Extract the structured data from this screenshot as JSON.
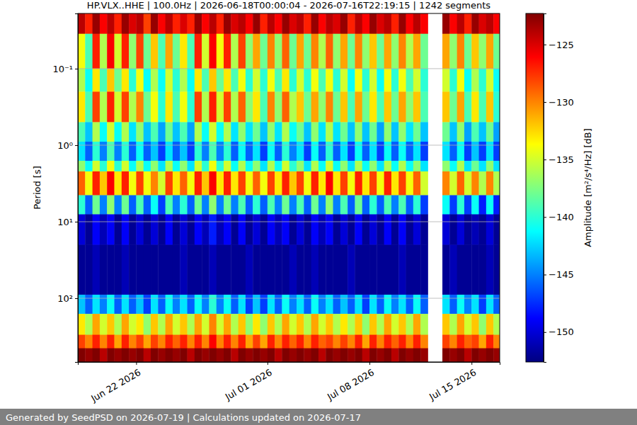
{
  "chart_data": {
    "type": "heatmap",
    "title": "HP.VLX..HHE | 100.0Hz | 2026-06-18T00:00:04 - 2026-07-16T22:19:15 | 1242 segments",
    "footer": "Generated by SeedPSD on 2026-07-19 | Calculations updated on 2026-07-17",
    "y_label": "Period [s]",
    "log": "y",
    "grid": "y",
    "xlim": [
      "2026-06-18T00:00:04",
      "2026-07-16T22:19:15"
    ],
    "ylim": [
      0.019,
      680
    ],
    "xticks": [
      {
        "value": "2026-06-22",
        "label": "Jun 22 2026"
      },
      {
        "value": "2026-07-01",
        "label": "Jul 01 2026"
      },
      {
        "value": "2026-07-08",
        "label": "Jul 08 2026"
      },
      {
        "value": "2026-07-15",
        "label": "Jul 15 2026"
      }
    ],
    "yticks": [
      {
        "value": 0.1,
        "label": "10⁻¹"
      },
      {
        "value": 1,
        "label": "10⁰"
      },
      {
        "value": 10,
        "label": "10¹"
      },
      {
        "value": 100,
        "label": "10²"
      }
    ],
    "x_edges": [
      "2026-06-18T00:00:04",
      "2026-06-18T12:00:00",
      "2026-06-19T00:00:00",
      "2026-06-19T12:00:00",
      "2026-06-20T00:00:00",
      "2026-06-20T12:00:00",
      "2026-06-21T00:00:00",
      "2026-06-21T12:00:00",
      "2026-06-22T00:00:00",
      "2026-06-22T12:00:00",
      "2026-06-23T00:00:00",
      "2026-06-23T12:00:00",
      "2026-06-24T00:00:00",
      "2026-06-24T12:00:00",
      "2026-06-25T00:00:00",
      "2026-06-25T12:00:00",
      "2026-06-26T00:00:00",
      "2026-06-26T12:00:00",
      "2026-06-27T00:00:00",
      "2026-06-27T12:00:00",
      "2026-06-28T00:00:00",
      "2026-06-28T12:00:00",
      "2026-06-29T00:00:00",
      "2026-06-29T12:00:00",
      "2026-06-30T00:00:00",
      "2026-06-30T12:00:00",
      "2026-07-01T00:00:00",
      "2026-07-01T12:00:00",
      "2026-07-02T00:00:00",
      "2026-07-02T12:00:00",
      "2026-07-03T00:00:00",
      "2026-07-03T12:00:00",
      "2026-07-04T00:00:00",
      "2026-07-04T12:00:00",
      "2026-07-05T00:00:00",
      "2026-07-05T12:00:00",
      "2026-07-06T00:00:00",
      "2026-07-06T12:00:00",
      "2026-07-07T00:00:00",
      "2026-07-07T12:00:00",
      "2026-07-08T00:00:00",
      "2026-07-08T12:00:00",
      "2026-07-09T00:00:00",
      "2026-07-09T12:00:00",
      "2026-07-10T00:00:00",
      "2026-07-10T12:00:00",
      "2026-07-11T00:00:00",
      "2026-07-11T12:00:00",
      "2026-07-12T00:00:00",
      "2026-07-12T12:00:00",
      "2026-07-13T00:00:00",
      "2026-07-13T12:00:00",
      "2026-07-14T00:00:00",
      "2026-07-14T12:00:00",
      "2026-07-15T00:00:00",
      "2026-07-15T12:00:00",
      "2026-07-16T00:00:00",
      "2026-07-16T12:00:00",
      "2026-07-16T22:19:15"
    ],
    "y_edges": [
      0.019,
      0.035,
      0.1,
      0.2,
      0.5,
      0.9,
      1.6,
      2.2,
      4.5,
      8,
      20,
      90,
      160,
      300,
      450,
      680
    ],
    "z": [
      [
        -124,
        -127,
        -123,
        -126,
        -124,
        -127,
        -123,
        -125,
        -124,
        -128,
        -123,
        -126,
        -124,
        -127,
        -125,
        -127,
        -123,
        -126,
        -124,
        -127,
        -123,
        -125,
        -124,
        -126,
        -123,
        -127,
        -124,
        -126,
        -123,
        -125,
        -124,
        -127,
        -123,
        -126,
        -124,
        -125,
        -123,
        -127,
        -124,
        -126,
        -123,
        -125,
        -124,
        -127,
        -123,
        -126,
        -124,
        -126,
        null,
        null,
        -123,
        -126,
        -124,
        -127,
        -123,
        -125,
        -124,
        -126
      ],
      [
        -134,
        -139,
        -127,
        -136,
        -126,
        -135,
        -127,
        -137,
        -128,
        -138,
        -132,
        -139,
        -131,
        -138,
        -133,
        -139,
        -127,
        -135,
        -126,
        -134,
        -127,
        -136,
        -128,
        -137,
        -131,
        -138,
        -130,
        -137,
        -129,
        -138,
        -131,
        -138,
        -130,
        -136,
        -129,
        -137,
        -131,
        -138,
        -130,
        -137,
        -132,
        -138,
        -131,
        -137,
        -130,
        -136,
        -131,
        -138,
        null,
        null,
        -131,
        -137,
        -130,
        -138,
        -132,
        -137,
        -131,
        -138
      ],
      [
        -136,
        -141,
        -133,
        -139,
        -132,
        -138,
        -133,
        -140,
        -134,
        -141,
        -136,
        -141,
        -135,
        -140,
        -136,
        -141,
        -133,
        -139,
        -132,
        -138,
        -133,
        -139,
        -134,
        -140,
        -135,
        -140,
        -134,
        -139,
        -133,
        -140,
        -135,
        -140,
        -134,
        -139,
        -134,
        -140,
        -135,
        -141,
        -134,
        -140,
        -135,
        -141,
        -134,
        -140,
        -134,
        -139,
        -135,
        -140,
        null,
        null,
        -135,
        -140,
        -134,
        -141,
        -136,
        -140,
        -135,
        -141
      ],
      [
        -133,
        -139,
        -128,
        -136,
        -127,
        -135,
        -128,
        -136,
        -130,
        -138,
        -134,
        -140,
        -133,
        -139,
        -134,
        -140,
        -128,
        -136,
        -127,
        -135,
        -128,
        -136,
        -129,
        -137,
        -133,
        -139,
        -130,
        -137,
        -129,
        -136,
        -132,
        -138,
        -131,
        -137,
        -130,
        -138,
        -132,
        -139,
        -131,
        -138,
        -133,
        -139,
        -132,
        -138,
        -131,
        -137,
        -132,
        -139,
        null,
        null,
        -132,
        -138,
        -131,
        -139,
        -133,
        -139,
        -132,
        -140
      ],
      [
        -139,
        -143,
        -136,
        -141,
        -135,
        -141,
        -136,
        -142,
        -137,
        -143,
        -139,
        -144,
        -138,
        -143,
        -139,
        -144,
        -136,
        -141,
        -135,
        -141,
        -136,
        -142,
        -137,
        -142,
        -138,
        -143,
        -137,
        -142,
        -136,
        -141,
        -138,
        -143,
        -137,
        -142,
        -136,
        -142,
        -138,
        -143,
        -137,
        -143,
        -138,
        -144,
        -137,
        -143,
        -137,
        -142,
        -138,
        -143,
        null,
        null,
        -138,
        -143,
        -137,
        -144,
        -139,
        -143,
        -138,
        -144
      ],
      [
        -142,
        -146,
        -140,
        -145,
        -139,
        -145,
        -140,
        -146,
        -141,
        -146,
        -143,
        -147,
        -142,
        -146,
        -143,
        -147,
        -140,
        -145,
        -139,
        -145,
        -140,
        -146,
        -141,
        -146,
        -142,
        -147,
        -141,
        -146,
        -140,
        -145,
        -142,
        -147,
        -141,
        -146,
        -140,
        -146,
        -142,
        -147,
        -141,
        -146,
        -142,
        -147,
        -141,
        -146,
        -141,
        -146,
        -142,
        -147,
        null,
        null,
        -142,
        -146,
        -141,
        -147,
        -143,
        -147,
        -142,
        -147
      ],
      [
        -137,
        -141,
        -135,
        -140,
        -134,
        -140,
        -135,
        -141,
        -136,
        -141,
        -137,
        -142,
        -136,
        -141,
        -137,
        -142,
        -135,
        -140,
        -134,
        -140,
        -135,
        -141,
        -136,
        -141,
        -137,
        -142,
        -136,
        -141,
        -135,
        -140,
        -137,
        -142,
        -136,
        -141,
        -135,
        -141,
        -137,
        -142,
        -136,
        -141,
        -137,
        -142,
        -136,
        -141,
        -136,
        -141,
        -137,
        -142,
        null,
        null,
        -137,
        -141,
        -136,
        -142,
        -138,
        -142,
        -137,
        -142
      ],
      [
        -129,
        -134,
        -127,
        -132,
        -126,
        -133,
        -127,
        -134,
        -128,
        -134,
        -130,
        -135,
        -128,
        -133,
        -129,
        -134,
        -127,
        -132,
        -126,
        -133,
        -127,
        -133,
        -128,
        -134,
        -129,
        -134,
        -128,
        -133,
        -127,
        -132,
        -128,
        -134,
        -127,
        -133,
        -126,
        -133,
        -128,
        -134,
        -127,
        -133,
        -128,
        -134,
        -127,
        -133,
        -128,
        -134,
        -129,
        -135,
        null,
        null,
        -130,
        -135,
        -129,
        -135,
        -130,
        -136,
        -130,
        -136
      ],
      [
        -140,
        -146,
        -138,
        -145,
        -137,
        -145,
        -138,
        -146,
        -139,
        -146,
        -141,
        -147,
        -139,
        -145,
        -140,
        -146,
        -138,
        -145,
        -137,
        -145,
        -138,
        -145,
        -139,
        -146,
        -140,
        -146,
        -139,
        -145,
        -138,
        -145,
        -139,
        -146,
        -138,
        -145,
        -137,
        -145,
        -139,
        -146,
        -138,
        -146,
        -140,
        -146,
        -139,
        -145,
        -139,
        -146,
        -140,
        -147,
        null,
        null,
        -141,
        -147,
        -140,
        -147,
        -141,
        -148,
        -141,
        -148
      ],
      [
        -150,
        -152,
        -149,
        -151,
        -149,
        -152,
        -149,
        -152,
        -150,
        -152,
        -150,
        -152,
        -149,
        -152,
        -150,
        -152,
        -149,
        -151,
        -148,
        -151,
        -149,
        -152,
        -149,
        -152,
        -150,
        -152,
        -149,
        -151,
        -149,
        -152,
        -150,
        -152,
        -149,
        -151,
        -149,
        -152,
        -150,
        -152,
        -149,
        -152,
        -150,
        -152,
        -149,
        -152,
        -149,
        -152,
        -150,
        -152,
        null,
        null,
        -150,
        -152,
        -150,
        -152,
        -151,
        -152,
        -150,
        -152
      ],
      [
        -152,
        -152,
        -151,
        -152,
        -152,
        -152,
        -151,
        -152,
        -152,
        -152,
        -152,
        -152,
        -152,
        -152,
        -151,
        -152,
        -152,
        -152,
        -151,
        -152,
        -152,
        -152,
        -152,
        -151,
        -152,
        -152,
        -152,
        -152,
        -152,
        -151,
        -152,
        -152,
        -151,
        -152,
        -152,
        -152,
        -152,
        -151,
        -152,
        -152,
        -152,
        -152,
        -152,
        -152,
        -151,
        -152,
        -152,
        -152,
        null,
        null,
        -152,
        -151,
        -152,
        -152,
        -152,
        -152,
        -151,
        -152
      ],
      [
        -143,
        -146,
        -142,
        -145,
        -141,
        -146,
        -142,
        -146,
        -143,
        -147,
        -142,
        -146,
        -141,
        -145,
        -142,
        -146,
        -141,
        -145,
        -140,
        -145,
        -141,
        -146,
        -142,
        -147,
        -143,
        -147,
        -142,
        -146,
        -141,
        -145,
        -142,
        -146,
        -141,
        -145,
        -142,
        -146,
        -143,
        -146,
        -142,
        -147,
        -142,
        -146,
        -141,
        -145,
        -142,
        -146,
        -141,
        -146,
        null,
        null,
        -142,
        -146,
        -141,
        -145,
        -142,
        -147,
        -142,
        -146
      ],
      [
        -133,
        -136,
        -131,
        -135,
        -132,
        -136,
        -131,
        -135,
        -133,
        -137,
        -132,
        -136,
        -131,
        -135,
        -132,
        -136,
        -131,
        -135,
        -130,
        -135,
        -131,
        -136,
        -132,
        -137,
        -133,
        -137,
        -132,
        -136,
        -131,
        -135,
        -132,
        -136,
        -131,
        -135,
        -132,
        -136,
        -133,
        -136,
        -132,
        -137,
        -132,
        -136,
        -131,
        -135,
        -132,
        -136,
        -131,
        -136,
        null,
        null,
        -132,
        -136,
        -131,
        -135,
        -132,
        -137,
        -132,
        -136
      ],
      [
        -128,
        -130,
        -127,
        -130,
        -127,
        -131,
        -127,
        -130,
        -128,
        -131,
        -128,
        -130,
        -127,
        -129,
        -127,
        -130,
        -127,
        -130,
        -126,
        -130,
        -127,
        -130,
        -127,
        -131,
        -128,
        -131,
        -127,
        -130,
        -127,
        -129,
        -127,
        -130,
        -127,
        -129,
        -128,
        -130,
        -128,
        -130,
        -127,
        -131,
        -127,
        -130,
        -127,
        -129,
        -127,
        -130,
        -127,
        -130,
        null,
        null,
        -128,
        -130,
        -127,
        -129,
        -128,
        -131,
        -127,
        -130
      ],
      [
        -122,
        -123,
        -122,
        -124,
        -122,
        -123,
        -122,
        -123,
        -122,
        -124,
        -122,
        -123,
        -122,
        -123,
        -122,
        -124,
        -122,
        -123,
        -122,
        -123,
        -122,
        -124,
        -122,
        -123,
        -122,
        -123,
        -122,
        -124,
        -122,
        -123,
        -122,
        -123,
        -122,
        -124,
        -122,
        -123,
        -122,
        -123,
        -122,
        -124,
        -122,
        -123,
        -122,
        -124,
        -122,
        -123,
        -122,
        -123,
        null,
        null,
        -122,
        -123,
        -122,
        -124,
        -122,
        -123,
        -122,
        -123
      ]
    ],
    "colorbar": {
      "label": "Amplitude [m²/s⁴/Hz] [dB]",
      "range": [
        -152.6,
        -122.3
      ],
      "ticks": [
        {
          "value": -150,
          "label": "−150"
        },
        {
          "value": -145,
          "label": "−145"
        },
        {
          "value": -140,
          "label": "−140"
        },
        {
          "value": -135,
          "label": "−135"
        },
        {
          "value": -130,
          "label": "−130"
        },
        {
          "value": -125,
          "label": "−125"
        }
      ]
    }
  }
}
